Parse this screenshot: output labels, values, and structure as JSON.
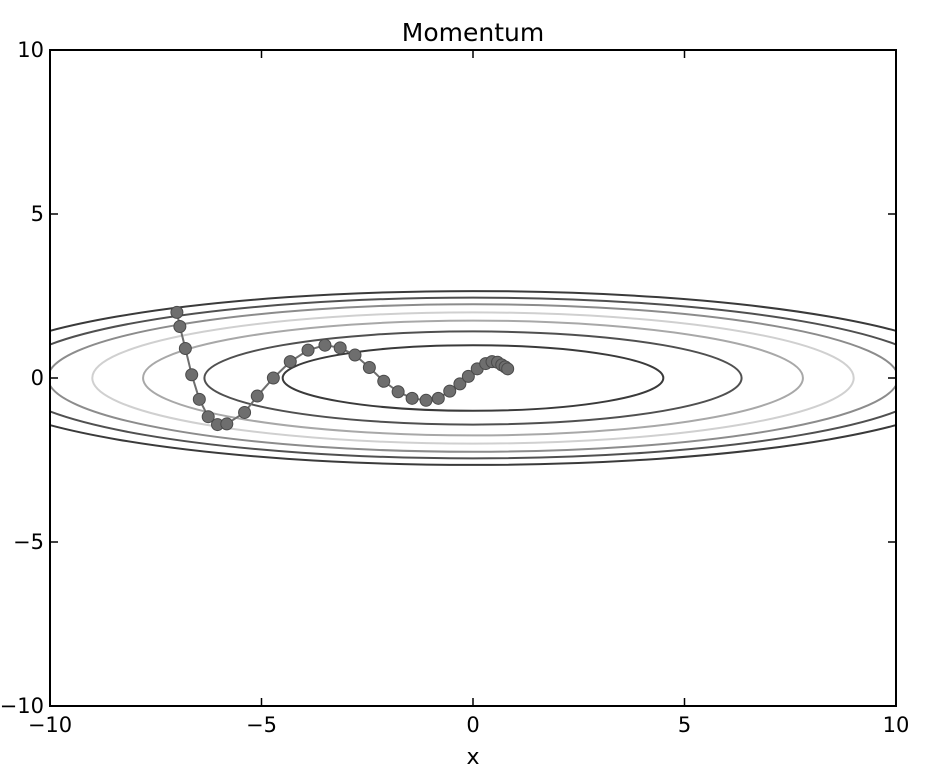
{
  "chart_data": {
    "type": "line",
    "title": "Momentum",
    "xlabel": "x",
    "ylabel": "",
    "xlim": [
      -10,
      10
    ],
    "ylim": [
      -10,
      10
    ],
    "xticks": [
      -10,
      -5,
      0,
      5,
      10
    ],
    "yticks": [
      -10,
      -5,
      0,
      5,
      10
    ],
    "xtick_labels": [
      "−10",
      "−5",
      "0",
      "5",
      "10"
    ],
    "ytick_labels": [
      "−10",
      "−5",
      "0",
      "5",
      "10"
    ],
    "grid": false,
    "legend": "none",
    "contour": {
      "function": "x^2/20 + y^2",
      "levels": [
        {
          "a": 4.5,
          "b": 1.0,
          "color": "#3a3a3a"
        },
        {
          "a": 6.35,
          "b": 1.42,
          "color": "#505050"
        },
        {
          "a": 7.8,
          "b": 1.75,
          "color": "#a8a8a8"
        },
        {
          "a": 9.0,
          "b": 2.0,
          "color": "#d0d0d0"
        },
        {
          "a": 10.05,
          "b": 2.25,
          "color": "#8c8c8c"
        },
        {
          "a": 11.0,
          "b": 2.45,
          "color": "#505050"
        },
        {
          "a": 11.9,
          "b": 2.65,
          "color": "#3a3a3a"
        }
      ]
    },
    "series": [
      {
        "marker_color": "#6e6e6e",
        "line_color": "#6e6e6e",
        "x": [
          -7.0,
          -6.93,
          -6.8,
          -6.65,
          -6.47,
          -6.26,
          -6.04,
          -5.82,
          -5.4,
          -5.1,
          -4.72,
          -4.32,
          -3.9,
          -3.5,
          -3.14,
          -2.79,
          -2.45,
          -2.11,
          -1.77,
          -1.44,
          -1.11,
          -0.82,
          -0.55,
          -0.31,
          -0.11,
          0.1,
          0.3,
          0.45,
          0.58,
          0.68,
          0.76,
          0.82
        ],
        "y": [
          2.0,
          1.57,
          0.9,
          0.1,
          -0.65,
          -1.18,
          -1.42,
          -1.4,
          -1.05,
          -0.55,
          0.0,
          0.5,
          0.85,
          1.0,
          0.92,
          0.7,
          0.32,
          -0.1,
          -0.42,
          -0.62,
          -0.68,
          -0.62,
          -0.4,
          -0.18,
          0.05,
          0.28,
          0.44,
          0.5,
          0.48,
          0.4,
          0.34,
          0.28
        ]
      }
    ]
  }
}
